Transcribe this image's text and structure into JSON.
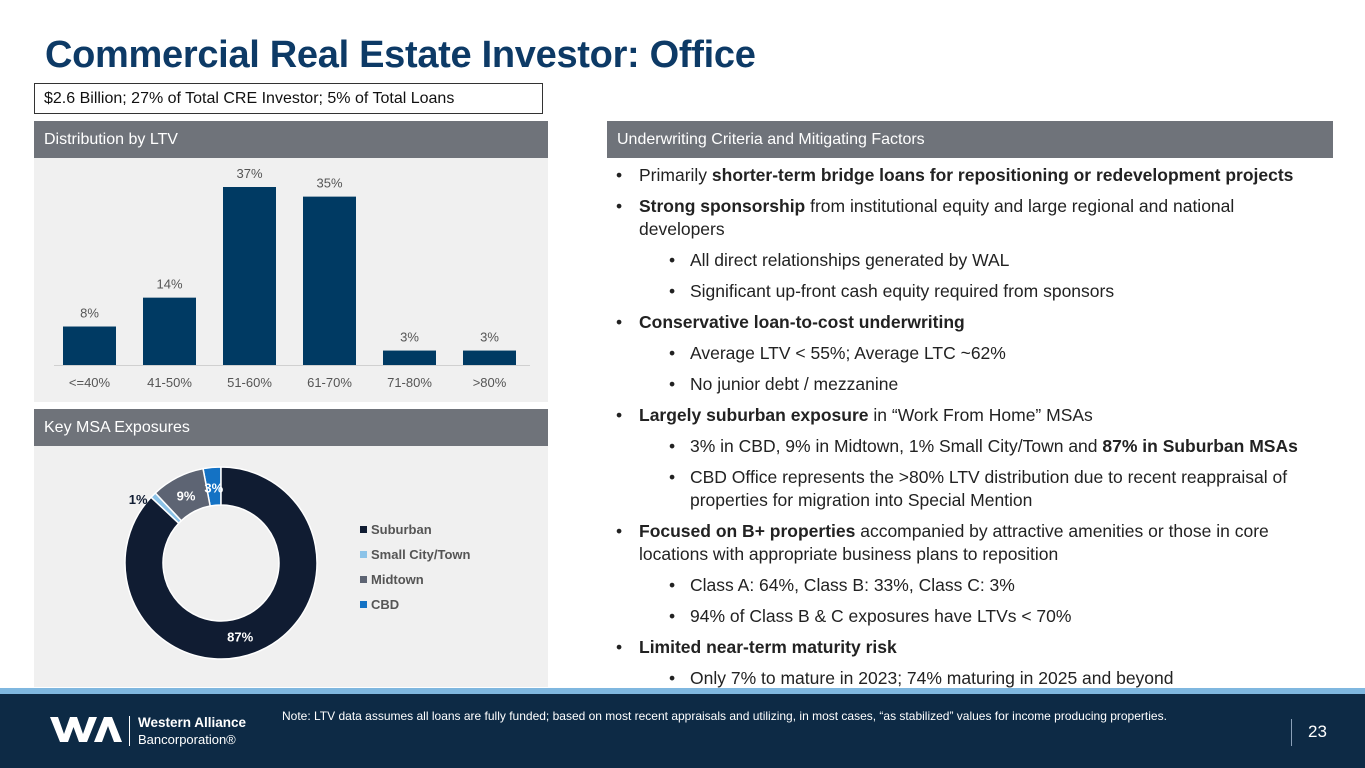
{
  "title": "Commercial Real Estate Investor: Office",
  "summary": "$2.6 Billion; 27% of Total CRE Investor; 5% of Total Loans",
  "ltv_panel": {
    "header": "Distribution by LTV"
  },
  "msa_panel": {
    "header": "Key MSA Exposures"
  },
  "criteria_panel": {
    "header": "Underwriting Criteria and Mitigating Factors"
  },
  "colors": {
    "bar": "#003a63",
    "suburban": "#101c32",
    "small_city": "#8cc3e8",
    "midtown": "#5d6473",
    "cbd": "#1472c4"
  },
  "chart_data": [
    {
      "type": "bar",
      "title": "Distribution by LTV",
      "categories": [
        "<=40%",
        "41-50%",
        "51-60%",
        "61-70%",
        "71-80%",
        ">80%"
      ],
      "values": [
        8,
        14,
        37,
        35,
        3,
        3
      ],
      "labels": [
        "8%",
        "14%",
        "37%",
        "35%",
        "3%",
        "3%"
      ],
      "ylim": [
        0,
        37
      ],
      "xlabel": "",
      "ylabel": ""
    },
    {
      "type": "pie",
      "style": "donut",
      "title": "Key MSA Exposures",
      "categories": [
        "Suburban",
        "Small City/Town",
        "Midtown",
        "CBD"
      ],
      "values": [
        87,
        1,
        9,
        3
      ],
      "labels": [
        "87%",
        "1%",
        "9%",
        "3%"
      ],
      "legend_position": "right"
    }
  ],
  "bullets": {
    "b1": {
      "pre": "Primarily ",
      "bold": "shorter-term bridge loans for repositioning or redevelopment projects",
      "post": ""
    },
    "b2": {
      "bold": "Strong sponsorship",
      "post": " from institutional equity and large regional and national developers"
    },
    "b2a": "All direct relationships generated by WAL",
    "b2b": "Significant up-front cash equity required from sponsors",
    "b3": {
      "bold": "Conservative loan-to-cost underwriting"
    },
    "b3a": "Average LTV < 55%; Average LTC ~62%",
    "b3b": "No junior debt / mezzanine",
    "b4": {
      "bold": "Largely suburban exposure",
      "post": " in “Work From Home” MSAs"
    },
    "b4a": {
      "pre": "3% in CBD, 9% in Midtown, 1% Small City/Town and ",
      "bold": "87% in Suburban MSAs"
    },
    "b4b": "CBD Office represents the >80% LTV distribution due to recent reappraisal of properties for migration into Special Mention",
    "b5": {
      "bold": "Focused on B+ properties",
      "post": " accompanied by attractive amenities or those in core locations with appropriate business plans to reposition"
    },
    "b5a": "Class A: 64%, Class B: 33%, Class C: 3%",
    "b5b": "94% of Class B & C exposures have LTVs < 70%",
    "b6": {
      "bold": "Limited near-term maturity risk"
    },
    "b6a": "Only 7% to mature in 2023; 74% maturing in 2025 and beyond"
  },
  "footer": {
    "note": "Note: LTV data assumes all loans are fully funded; based on most recent appraisals and utilizing, in most cases, “as stabilized” values for income producing properties.",
    "brand_line1": "Western Alliance",
    "brand_line2": "Bancorporation®",
    "page_number": "23"
  }
}
